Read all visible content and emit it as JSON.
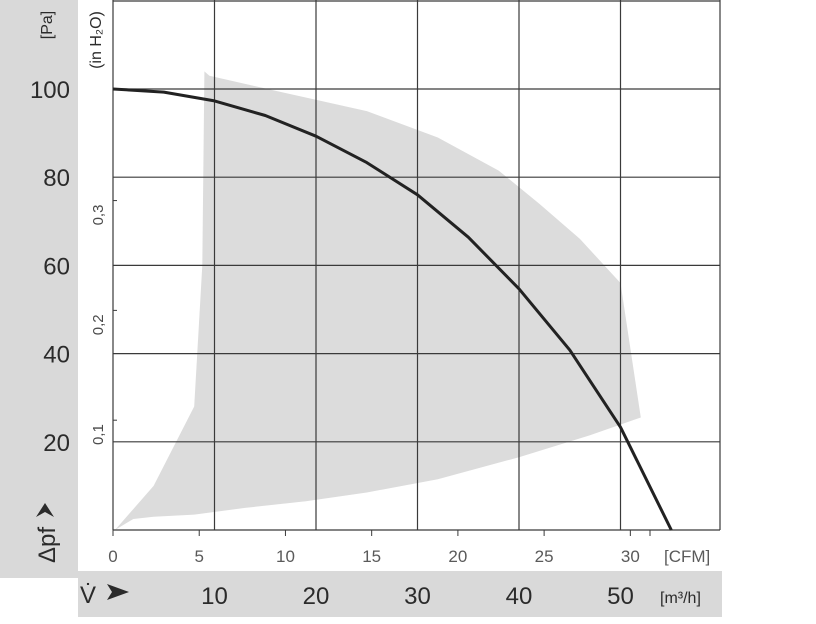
{
  "chart_data": {
    "type": "line",
    "x_primary": {
      "unit": "[m³/h]",
      "symbol": "V̇",
      "ticks": [
        10,
        20,
        30,
        40,
        50
      ],
      "range": [
        0,
        60
      ]
    },
    "x_secondary": {
      "unit": "[CFM]",
      "ticks": [
        0,
        5,
        10,
        15,
        20,
        25,
        30
      ],
      "range": [
        0,
        35.3
      ]
    },
    "y_primary": {
      "unit": "[Pa]",
      "symbol": "Δpf",
      "ticks": [
        20,
        40,
        60,
        80,
        100
      ],
      "range": [
        0,
        120
      ]
    },
    "y_secondary": {
      "unit": "(in H₂O)",
      "ticks": [
        "0,1",
        "0,2",
        "0,3"
      ],
      "tick_values_pa": [
        24.9,
        49.8,
        74.7
      ]
    },
    "grid": true,
    "curve": {
      "x": [
        0,
        5,
        10,
        15,
        20,
        25,
        30,
        35,
        40,
        45,
        50,
        55
      ],
      "y": [
        100,
        99.3,
        97.3,
        94,
        89.3,
        83.3,
        76,
        66.4,
        54.7,
        40.8,
        23.3,
        0
      ]
    },
    "operating_region": {
      "x": [
        9,
        9.5,
        16,
        25,
        32,
        38,
        42,
        46,
        50,
        52,
        47,
        40,
        32,
        25,
        19,
        13,
        8,
        4,
        2,
        0.2,
        4,
        8,
        8.8,
        9
      ],
      "y": [
        104,
        103,
        99.6,
        95,
        89,
        81.5,
        74,
        66,
        56,
        25.5,
        21.5,
        16.5,
        11.5,
        8.5,
        6.5,
        5,
        3.5,
        3,
        2.5,
        0,
        10,
        28,
        60,
        104
      ]
    }
  }
}
